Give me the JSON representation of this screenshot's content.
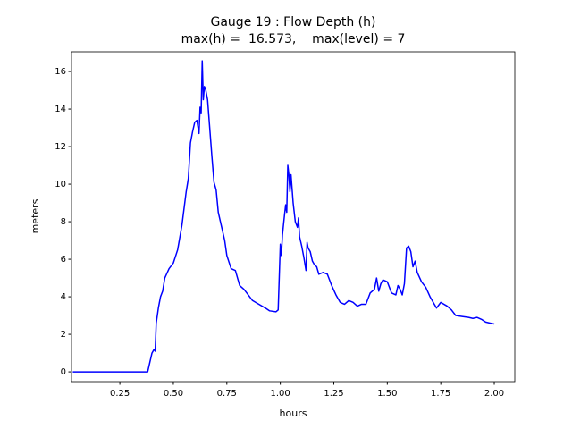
{
  "chart_data": {
    "type": "line",
    "title": "Gauge 19 : Flow Depth (h)",
    "subtitle": "max(h) =  16.573,    max(level) = 7",
    "x_label": "hours",
    "y_label": "meters",
    "xlim": [
      0.024,
      2.096
    ],
    "ylim": [
      -0.52,
      17.05
    ],
    "xticks": [
      {
        "value": 0.25,
        "label": "0.25"
      },
      {
        "value": 0.5,
        "label": "0.50"
      },
      {
        "value": 0.75,
        "label": "0.75"
      },
      {
        "value": 1.0,
        "label": "1.00"
      },
      {
        "value": 1.25,
        "label": "1.25"
      },
      {
        "value": 1.5,
        "label": "1.50"
      },
      {
        "value": 1.75,
        "label": "1.75"
      },
      {
        "value": 2.0,
        "label": "2.00"
      }
    ],
    "yticks": [
      0,
      2,
      4,
      6,
      8,
      10,
      12,
      14,
      16
    ],
    "grid": false,
    "x": [
      0.03,
      0.38,
      0.39,
      0.4,
      0.41,
      0.415,
      0.42,
      0.43,
      0.44,
      0.45,
      0.46,
      0.48,
      0.5,
      0.52,
      0.54,
      0.56,
      0.57,
      0.58,
      0.59,
      0.6,
      0.61,
      0.62,
      0.625,
      0.63,
      0.635,
      0.64,
      0.645,
      0.65,
      0.66,
      0.67,
      0.68,
      0.69,
      0.7,
      0.71,
      0.72,
      0.74,
      0.75,
      0.77,
      0.79,
      0.81,
      0.83,
      0.85,
      0.87,
      0.9,
      0.93,
      0.95,
      0.98,
      0.99,
      1.0,
      1.005,
      1.01,
      1.02,
      1.025,
      1.03,
      1.035,
      1.04,
      1.045,
      1.05,
      1.06,
      1.07,
      1.08,
      1.085,
      1.09,
      1.1,
      1.11,
      1.12,
      1.125,
      1.13,
      1.14,
      1.15,
      1.16,
      1.17,
      1.18,
      1.2,
      1.22,
      1.24,
      1.26,
      1.28,
      1.3,
      1.32,
      1.34,
      1.36,
      1.38,
      1.4,
      1.42,
      1.44,
      1.45,
      1.46,
      1.47,
      1.48,
      1.5,
      1.52,
      1.54,
      1.55,
      1.56,
      1.57,
      1.58,
      1.59,
      1.6,
      1.61,
      1.62,
      1.63,
      1.64,
      1.66,
      1.68,
      1.7,
      1.72,
      1.73,
      1.75,
      1.78,
      1.8,
      1.82,
      1.85,
      1.88,
      1.9,
      1.92,
      1.94,
      1.96,
      1.98,
      2.0
    ],
    "series": [
      {
        "name": "h",
        "color": "#0000ff",
        "values": [
          0,
          0,
          0.5,
          1.0,
          1.2,
          1.1,
          2.6,
          3.4,
          4.0,
          4.3,
          5.0,
          5.5,
          5.8,
          6.5,
          7.8,
          9.6,
          10.3,
          12.2,
          12.8,
          13.3,
          13.4,
          12.7,
          14.1,
          13.8,
          16.57,
          14.5,
          15.2,
          15.1,
          14.5,
          13.0,
          11.5,
          10.1,
          9.7,
          8.5,
          8.0,
          7.0,
          6.2,
          5.5,
          5.4,
          4.6,
          4.4,
          4.1,
          3.8,
          3.6,
          3.4,
          3.25,
          3.2,
          3.3,
          6.8,
          6.2,
          7.3,
          8.4,
          8.9,
          8.5,
          11.0,
          10.5,
          9.6,
          10.5,
          9.0,
          8.0,
          7.7,
          8.2,
          7.2,
          6.7,
          6.1,
          5.4,
          6.9,
          6.6,
          6.4,
          5.9,
          5.7,
          5.6,
          5.2,
          5.3,
          5.2,
          4.6,
          4.1,
          3.7,
          3.6,
          3.8,
          3.7,
          3.5,
          3.6,
          3.6,
          4.2,
          4.4,
          5.0,
          4.3,
          4.7,
          4.9,
          4.8,
          4.2,
          4.1,
          4.6,
          4.4,
          4.1,
          4.7,
          6.6,
          6.7,
          6.4,
          5.6,
          5.9,
          5.3,
          4.8,
          4.5,
          4.0,
          3.6,
          3.4,
          3.7,
          3.5,
          3.3,
          3.0,
          2.95,
          2.9,
          2.85,
          2.9,
          2.8,
          2.65,
          2.6,
          2.55
        ]
      }
    ]
  }
}
